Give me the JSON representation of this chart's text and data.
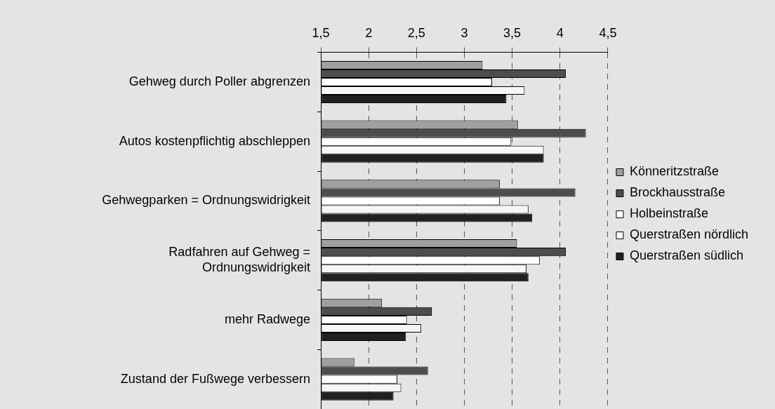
{
  "chart_data": {
    "type": "bar",
    "orientation": "horizontal",
    "categories": [
      "Gehweg durch Poller abgrenzen",
      "Autos kostenpflichtig abschleppen",
      "Gehwegparken = Ordnungswidrigkeit",
      "Radfahren auf Gehweg = Ordnungswidrigkeit",
      "mehr Radwege",
      "Zustand der Fußwege verbessern"
    ],
    "series": [
      {
        "name": "Könneritzstraße",
        "color": "#a0a0a0",
        "values": [
          3.19,
          3.56,
          3.37,
          3.55,
          2.14,
          1.85
        ]
      },
      {
        "name": "Brockhausstraße",
        "color": "#4d4d4d",
        "values": [
          4.06,
          4.27,
          4.16,
          4.06,
          2.66,
          2.62
        ]
      },
      {
        "name": "Holbeinstraße",
        "color": "#ffffff",
        "values": [
          3.29,
          3.49,
          3.37,
          3.79,
          2.4,
          2.3
        ]
      },
      {
        "name": "Querstraßen nördlich",
        "color": "#f6f6f6",
        "values": [
          3.63,
          3.83,
          3.67,
          3.65,
          2.55,
          2.34
        ]
      },
      {
        "name": "Querstraßen südlich",
        "color": "#202020",
        "values": [
          3.44,
          3.83,
          3.71,
          3.67,
          2.39,
          2.26
        ]
      }
    ],
    "xlim": [
      1.5,
      4.5
    ],
    "xticks": [
      {
        "value": 1.5,
        "label": "1,5"
      },
      2,
      {
        "value": 2.5,
        "label": "2,5"
      },
      3,
      {
        "value": 3.5,
        "label": "3,5"
      },
      4,
      {
        "value": 4.5,
        "label": "4,5"
      }
    ],
    "grid": "x",
    "legend": "right"
  }
}
